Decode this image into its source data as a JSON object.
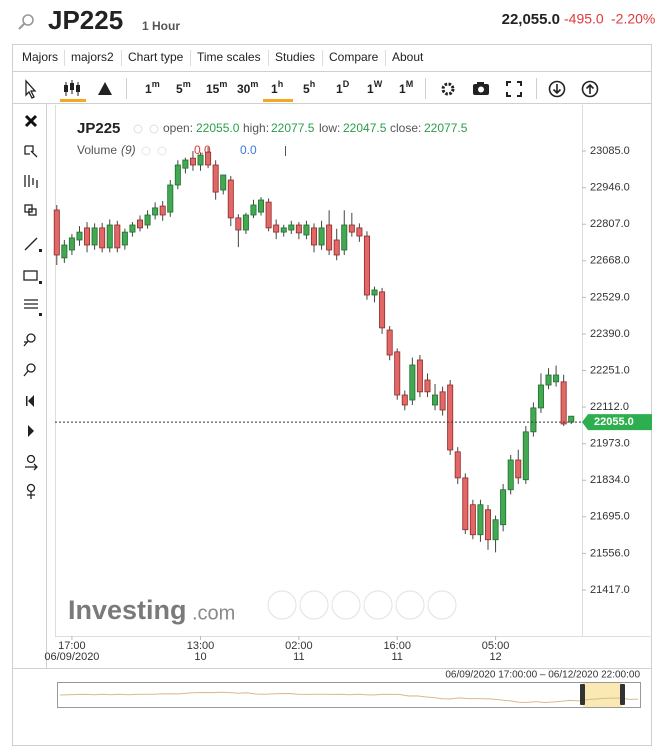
{
  "header": {
    "symbol": "JP225",
    "interval": "1 Hour",
    "price": "22,055.0",
    "change": "-495.0",
    "change_pct": "-2.20%"
  },
  "menu": [
    "Majors",
    "majors2",
    "Chart type",
    "Time scales",
    "Studies",
    "Compare",
    "About"
  ],
  "timescales": [
    {
      "n": "1",
      "u": "m"
    },
    {
      "n": "5",
      "u": "m"
    },
    {
      "n": "15",
      "u": "m"
    },
    {
      "n": "30",
      "u": "m"
    },
    {
      "n": "1",
      "u": "h",
      "active": true
    },
    {
      "n": "5",
      "u": "h"
    },
    {
      "n": "1",
      "u": "D"
    },
    {
      "n": "1",
      "u": "W"
    },
    {
      "n": "1",
      "u": "M"
    }
  ],
  "watermark": {
    "brand": "Investing",
    "suffix": ".com"
  },
  "range": "06/09/2020 17:00:00 – 06/12/2020 22:00:00",
  "chart_data": {
    "type": "candlestick",
    "legend": {
      "symbol": "JP225",
      "open_label": "open:",
      "open": "22055.0",
      "high_label": "high:",
      "high": "22077.5",
      "low_label": "low:",
      "low": "22047.5",
      "close_label": "close:",
      "close": "22077.5"
    },
    "volume": {
      "name": "Volume",
      "period": "(9)",
      "value1": "0.0",
      "value2": "0.0"
    },
    "categories": [
      null,
      null,
      "17:00",
      null,
      null,
      null,
      null,
      null,
      null,
      null,
      null,
      null,
      null,
      null,
      null,
      null,
      null,
      null,
      null,
      "13:00",
      null,
      null,
      null,
      null,
      null,
      null,
      null,
      null,
      null,
      null,
      null,
      null,
      "02:00",
      null,
      null,
      null,
      null,
      null,
      null,
      null,
      null,
      null,
      null,
      null,
      null,
      "16:00",
      null,
      null,
      null,
      null,
      null,
      null,
      null,
      null,
      null,
      null,
      null,
      null,
      "05:00",
      null,
      null,
      null,
      null,
      null,
      null,
      null,
      null,
      null,
      null
    ],
    "dates": [
      null,
      null,
      "06/09/2020",
      null,
      null,
      null,
      null,
      null,
      null,
      null,
      null,
      null,
      null,
      null,
      null,
      null,
      null,
      null,
      null,
      "10",
      null,
      null,
      null,
      null,
      null,
      null,
      null,
      null,
      null,
      null,
      null,
      null,
      "11",
      null,
      null,
      null,
      null,
      null,
      null,
      null,
      null,
      null,
      null,
      null,
      null,
      "11",
      null,
      null,
      null,
      null,
      null,
      null,
      null,
      null,
      null,
      null,
      null,
      null,
      "12",
      null,
      null,
      null,
      null,
      null,
      null,
      null,
      null,
      null,
      null
    ],
    "open": [
      22861,
      22679,
      22709,
      22747,
      22793,
      22728,
      22793,
      22717,
      22804,
      22728,
      22777,
      22823,
      22804,
      22842,
      22876,
      22853,
      22956,
      23020,
      23058,
      23032,
      23081,
      23032,
      22937,
      22975,
      22831,
      22785,
      22842,
      22853,
      22891,
      22804,
      22777,
      22785,
      22804,
      22766,
      22793,
      22728,
      22804,
      22747,
      22709,
      22804,
      22793,
      22762,
      22538,
      22550,
      22405,
      22322,
      22158,
      22139,
      22291,
      22215,
      22120,
      22170,
      22196,
      21942,
      21843,
      21741,
      21627,
      21722,
      21608,
      21665,
      21798,
      21911,
      21836,
      22018,
      22109,
      22196,
      22208,
      22208,
      22055
    ],
    "high": [
      22880,
      22747,
      22770,
      22800,
      22815,
      22810,
      22812,
      22825,
      22820,
      22790,
      22815,
      22840,
      22860,
      22890,
      22895,
      22975,
      23050,
      23060,
      23085,
      23080,
      23100,
      23050,
      22990,
      22990,
      22845,
      22850,
      22900,
      22910,
      22905,
      22825,
      22805,
      22820,
      22815,
      22820,
      22810,
      22820,
      22860,
      22790,
      22860,
      22850,
      22810,
      22780,
      22570,
      22565,
      22420,
      22335,
      22175,
      22300,
      22310,
      22240,
      22200,
      22190,
      22215,
      21960,
      21860,
      21760,
      21760,
      21740,
      21700,
      21820,
      21930,
      21950,
      22040,
      22130,
      22240,
      22260,
      22270,
      22235,
      22077.5
    ],
    "low": [
      22652,
      22660,
      22690,
      22725,
      22700,
      22710,
      22700,
      22700,
      22700,
      22710,
      22760,
      22780,
      22790,
      22825,
      22820,
      22835,
      22940,
      23000,
      23010,
      23010,
      23020,
      22900,
      22920,
      22800,
      22720,
      22770,
      22830,
      22840,
      22780,
      22750,
      22760,
      22770,
      22750,
      22750,
      22700,
      22710,
      22690,
      22670,
      22690,
      22760,
      22740,
      22520,
      22510,
      22390,
      22290,
      22140,
      22100,
      22120,
      22150,
      22150,
      22100,
      22080,
      21930,
      21820,
      21630,
      21610,
      21600,
      21570,
      21560,
      21640,
      21780,
      21820,
      21820,
      22000,
      22090,
      22180,
      22190,
      22040,
      22047.5
    ],
    "close": [
      22690,
      22728,
      22755,
      22777,
      22728,
      22793,
      22717,
      22804,
      22717,
      22777,
      22804,
      22793,
      22842,
      22869,
      22842,
      22956,
      23032,
      23051,
      23032,
      23070,
      23032,
      22929,
      22994,
      22831,
      22785,
      22842,
      22880,
      22899,
      22793,
      22777,
      22793,
      22804,
      22774,
      22804,
      22728,
      22793,
      22709,
      22690,
      22804,
      22777,
      22762,
      22538,
      22557,
      22413,
      22310,
      22158,
      22120,
      22272,
      22170,
      22170,
      22158,
      22101,
      21949,
      21843,
      21646,
      21627,
      21741,
      21608,
      21684,
      21798,
      21911,
      21843,
      22018,
      22109,
      22196,
      22234,
      22234,
      22048,
      22077.5
    ],
    "up_color": "#43a852",
    "up_border": "#1f6e2d",
    "down_color": "#e26767",
    "down_border": "#8e2a2a",
    "wick_color": "#444444",
    "ylim": [
      21246,
      23260
    ],
    "yticks": [
      {
        "value": 23085,
        "label": "23085.0"
      },
      {
        "value": 22946,
        "label": "22946.0"
      },
      {
        "value": 22807,
        "label": "22807.0"
      },
      {
        "value": 22668,
        "label": "22668.0"
      },
      {
        "value": 22529,
        "label": "22529.0"
      },
      {
        "value": 22390,
        "label": "22390.0"
      },
      {
        "value": 22251,
        "label": "22251.0"
      },
      {
        "value": 22112,
        "label": "22112.0"
      },
      {
        "value": 21973,
        "label": "21973.0"
      },
      {
        "value": 21834,
        "label": "21834.0"
      },
      {
        "value": 21695,
        "label": "21695.0"
      },
      {
        "value": 21556,
        "label": "21556.0"
      },
      {
        "value": 21417,
        "label": "21417.0"
      }
    ],
    "last_price": {
      "value": 22055,
      "label": "22055.0"
    },
    "last_price_color": "#2eaf4f"
  }
}
